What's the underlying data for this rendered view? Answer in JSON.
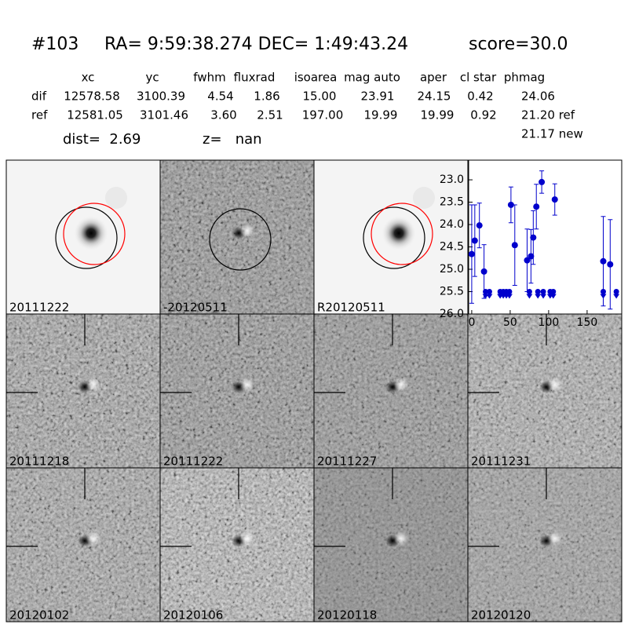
{
  "header": {
    "id": "#103",
    "coords": "RA= 9:59:38.274 DEC= 1:49:43.24",
    "score": "score=30.0"
  },
  "table": {
    "columns": [
      "xc",
      "yc",
      "fwhm",
      "fluxrad",
      "isoarea",
      "mag auto",
      "aper",
      "cl star",
      "phmag"
    ],
    "rows": [
      {
        "label": "dif",
        "cells": [
          "12578.58",
          "3100.39",
          "4.54",
          "1.86",
          "15.00",
          "23.91",
          "24.15",
          "0.42",
          "24.06"
        ]
      },
      {
        "label": "ref",
        "cells": [
          "12581.05",
          "3101.46",
          "3.60",
          "2.51",
          "197.00",
          "19.99",
          "19.99",
          "0.92",
          "21.20 ref"
        ]
      }
    ],
    "new_phmag": "21.17 new"
  },
  "dist": "dist=  2.69",
  "z": "z=   nan",
  "panels": [
    {
      "label": "20111222"
    },
    {
      "label": "-20120511"
    },
    {
      "label": "R20120511"
    },
    {
      "label": "20111218"
    },
    {
      "label": "20111222",
      "color": "#ff0000"
    },
    {
      "label": "20111227"
    },
    {
      "label": "20111231"
    },
    {
      "label": "20120102"
    },
    {
      "label": "20120106"
    },
    {
      "label": "20120118"
    },
    {
      "label": "20120120"
    }
  ],
  "chart_data": {
    "type": "scatter",
    "xlim": [
      -4,
      195
    ],
    "ylim": [
      26.0,
      22.56
    ],
    "inverted_y": true,
    "xticks": [
      0,
      50,
      100,
      150
    ],
    "yticks": [
      {
        "value": 23,
        "label": "23.0"
      },
      23.5,
      {
        "value": 24,
        "label": "24.0"
      },
      24.5,
      {
        "value": 25,
        "label": "25.0"
      },
      25.5,
      {
        "value": 26,
        "label": "26.0"
      }
    ],
    "series": [
      {
        "color": "#0000cc",
        "marker": "errorbar",
        "x": [
          0,
          4,
          10,
          16,
          51,
          56,
          72,
          77,
          80,
          84,
          91,
          108,
          171,
          180
        ],
        "values": [
          24.66,
          24.36,
          24.02,
          25.05,
          23.56,
          24.46,
          24.8,
          24.71,
          24.29,
          23.6,
          23.05,
          23.44,
          24.82,
          24.89
        ],
        "errors": [
          1.1,
          0.8,
          0.5,
          0.6,
          0.4,
          0.9,
          0.7,
          0.6,
          0.6,
          0.5,
          0.25,
          0.35,
          1.0,
          1.0
        ]
      },
      {
        "color": "#0000cc",
        "marker": "limit",
        "x": [
          18,
          23,
          37,
          41,
          45,
          49,
          75,
          86,
          93,
          102,
          106,
          171,
          188
        ],
        "values": [
          25.5,
          25.5,
          25.5,
          25.5,
          25.5,
          25.5,
          25.5,
          25.5,
          25.5,
          25.5,
          25.5,
          25.5,
          25.5
        ]
      }
    ]
  }
}
